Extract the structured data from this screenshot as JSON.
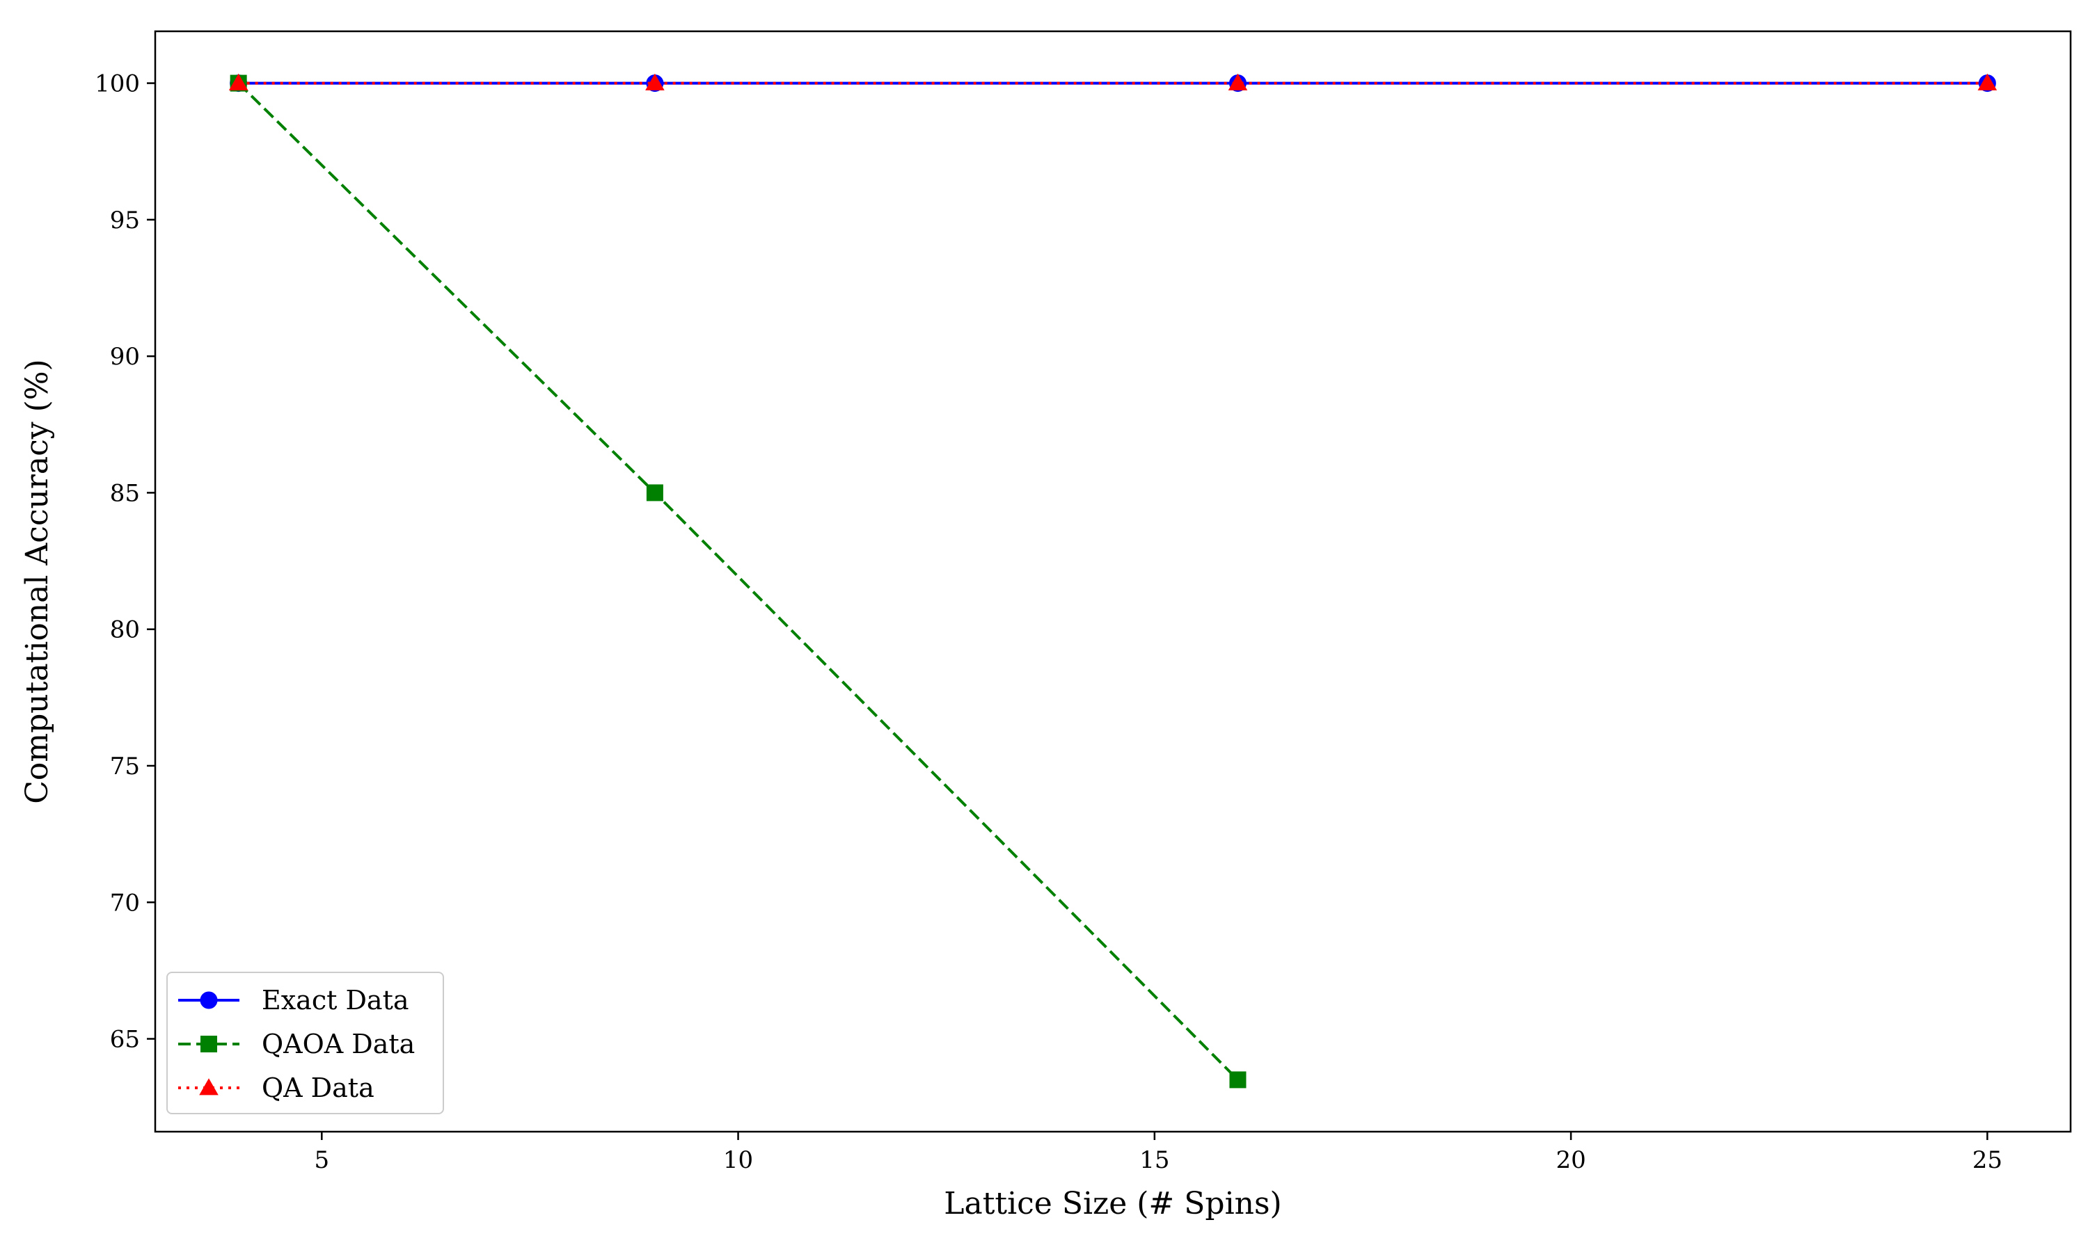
{
  "chart_data": {
    "type": "line",
    "title": "",
    "xlabel": "Lattice Size (# Spins)",
    "ylabel": "Computational Accuracy (%)",
    "xlim": [
      3,
      26
    ],
    "ylim": [
      61.6,
      101.9
    ],
    "xticks": [
      5,
      10,
      15,
      20,
      25
    ],
    "yticks": [
      65,
      70,
      75,
      80,
      85,
      90,
      95,
      100
    ],
    "grid": false,
    "legend_position": "lower left",
    "series": [
      {
        "name": "Exact Data",
        "x": [
          4,
          9,
          16,
          25
        ],
        "y": [
          100,
          100,
          100,
          100
        ],
        "color": "#0000ff",
        "line_style": "solid",
        "marker": "circle"
      },
      {
        "name": "QAOA Data",
        "x": [
          4,
          9,
          16
        ],
        "y": [
          100,
          85,
          63.5
        ],
        "color": "#008000",
        "line_style": "dashed",
        "marker": "square"
      },
      {
        "name": "QA Data",
        "x": [
          4,
          9,
          16,
          25
        ],
        "y": [
          100,
          100,
          100,
          100
        ],
        "color": "#ff0000",
        "line_style": "dotted",
        "marker": "triangle"
      }
    ]
  }
}
